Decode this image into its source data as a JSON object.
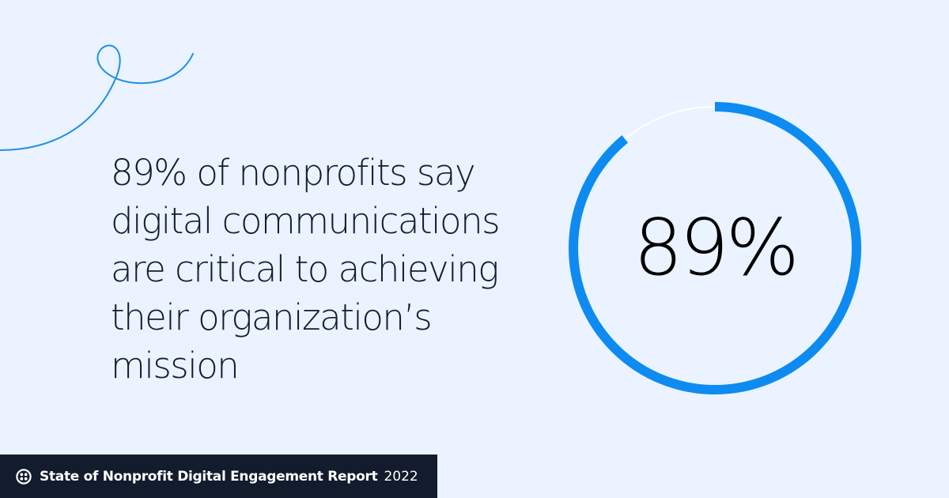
{
  "headline": {
    "lines": [
      "89% of nonprofits say",
      "digital communications",
      "are critical to achieving",
      "their organization’s",
      "mission"
    ]
  },
  "stat": {
    "label": "89%",
    "fraction": 0.89
  },
  "footer": {
    "title": "State of Nonprofit Digital Engagement Report",
    "year": "2022",
    "logo_icon": "twilio-logo-icon"
  },
  "colors": {
    "background": "#EAF3FF",
    "accent": "#0D8BF0",
    "track": "#FFFFFF",
    "text": "#121C2D",
    "footer_bg": "#121C2D"
  }
}
